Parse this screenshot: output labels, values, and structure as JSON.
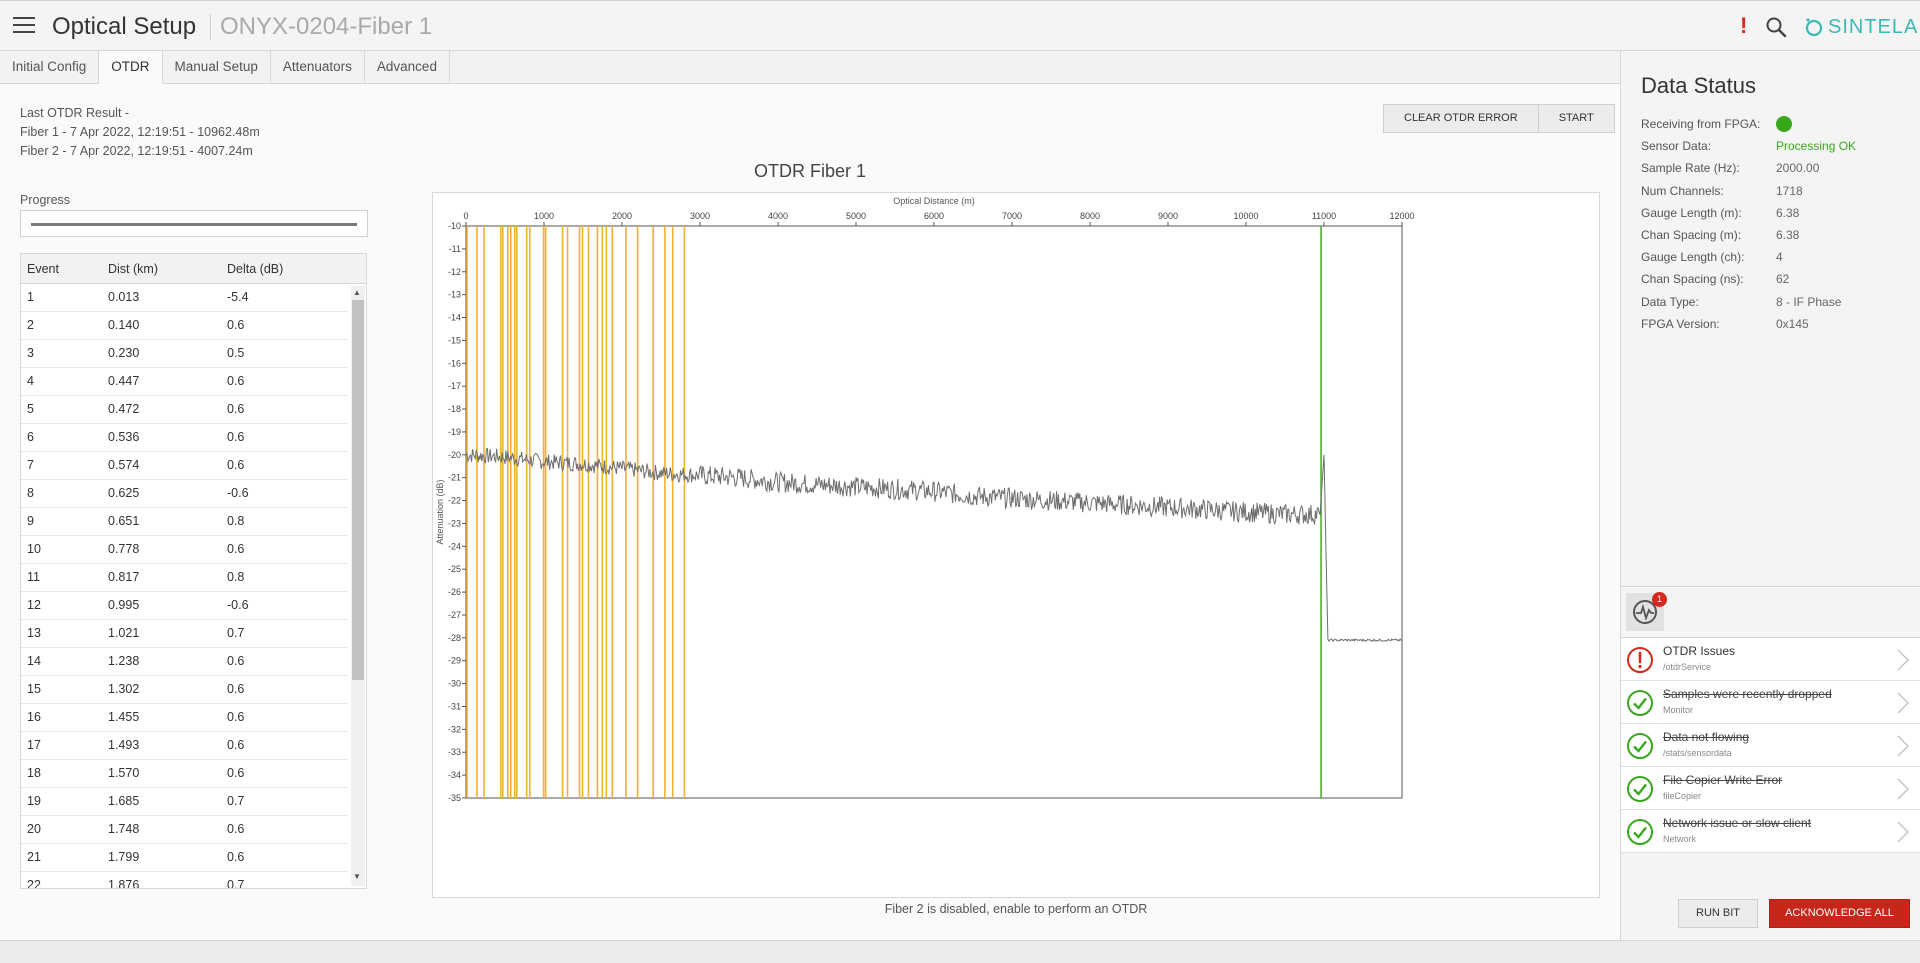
{
  "header": {
    "app_title": "Optical Setup",
    "device_title": "ONYX-0204-Fiber 1",
    "alert_indicator": "!",
    "brand": "SINTELA",
    "icons": [
      "menu-icon",
      "search-icon",
      "sintela-logo-icon"
    ],
    "colors": {
      "brand": "#3ab9b5",
      "alert": "#e0261b"
    }
  },
  "tabs": [
    {
      "label": "Initial Config",
      "active": false
    },
    {
      "label": "OTDR",
      "active": true
    },
    {
      "label": "Manual Setup",
      "active": false
    },
    {
      "label": "Attenuators",
      "active": false
    },
    {
      "label": "Advanced",
      "active": false
    }
  ],
  "otdr": {
    "last_result_label": "Last OTDR Result -",
    "fiber1_result": "Fiber 1 - 7 Apr 2022, 12:19:51 - 10962.48m",
    "fiber2_result": "Fiber 2 - 7 Apr 2022, 12:19:51 - 4007.24m",
    "clear_error_label": "CLEAR OTDR ERROR",
    "start_label": "START",
    "progress_label": "Progress",
    "progress_fraction": 1.0,
    "fiber2_message": "Fiber 2 is disabled, enable to perform an OTDR"
  },
  "events_table": {
    "headers": [
      "Event",
      "Dist (km)",
      "Delta (dB)"
    ],
    "rows": [
      [
        "1",
        "0.013",
        "-5.4"
      ],
      [
        "2",
        "0.140",
        "0.6"
      ],
      [
        "3",
        "0.230",
        "0.5"
      ],
      [
        "4",
        "0.447",
        "0.6"
      ],
      [
        "5",
        "0.472",
        "0.6"
      ],
      [
        "6",
        "0.536",
        "0.6"
      ],
      [
        "7",
        "0.574",
        "0.6"
      ],
      [
        "8",
        "0.625",
        "-0.6"
      ],
      [
        "9",
        "0.651",
        "0.8"
      ],
      [
        "10",
        "0.778",
        "0.6"
      ],
      [
        "11",
        "0.817",
        "0.8"
      ],
      [
        "12",
        "0.995",
        "-0.6"
      ],
      [
        "13",
        "1.021",
        "0.7"
      ],
      [
        "14",
        "1.238",
        "0.6"
      ],
      [
        "15",
        "1.302",
        "0.6"
      ],
      [
        "16",
        "1.455",
        "0.6"
      ],
      [
        "17",
        "1.493",
        "0.6"
      ],
      [
        "18",
        "1.570",
        "0.6"
      ],
      [
        "19",
        "1.685",
        "0.7"
      ],
      [
        "20",
        "1.748",
        "0.6"
      ],
      [
        "21",
        "1.799",
        "0.6"
      ],
      [
        "22",
        "1.876",
        "0.7"
      ]
    ]
  },
  "chart_data": {
    "type": "line",
    "title": "OTDR Fiber 1",
    "xlabel": "Optical Distance (m)",
    "ylabel": "Attenuation (dB)",
    "xlim": [
      0,
      12000
    ],
    "ylim": [
      -35,
      -10
    ],
    "x_ticks": [
      "0",
      "1000",
      "2000",
      "3000",
      "4000",
      "5000",
      "6000",
      "7000",
      "8000",
      "9000",
      "10000",
      "11000",
      "12000"
    ],
    "y_ticks": [
      "-10",
      "-11",
      "-12",
      "-13",
      "-14",
      "-15",
      "-16",
      "-17",
      "-18",
      "-19",
      "-20",
      "-21",
      "-22",
      "-23",
      "-24",
      "-25",
      "-26",
      "-27",
      "-28",
      "-29",
      "-30",
      "-31",
      "-32",
      "-33",
      "-34",
      "-35"
    ],
    "series": [
      {
        "color": "#6e6e6e",
        "x": [
          0,
          500,
          1000,
          1500,
          2000,
          2500,
          3000,
          3500,
          4000,
          4500,
          5000,
          5500,
          6000,
          6500,
          7000,
          7500,
          8000,
          8500,
          9000,
          9500,
          10000,
          10500,
          10950,
          11000,
          11050,
          11500,
          12000
        ],
        "y": [
          -20.0,
          -20.1,
          -20.3,
          -20.4,
          -20.6,
          -20.8,
          -20.9,
          -21.0,
          -21.2,
          -21.3,
          -21.4,
          -21.5,
          -21.6,
          -21.8,
          -21.9,
          -22.0,
          -22.1,
          -22.2,
          -22.3,
          -22.4,
          -22.5,
          -22.6,
          -22.6,
          -20.0,
          -28.1,
          -28.1,
          -28.1
        ]
      }
    ],
    "event_markers_m": [
      13,
      140,
      230,
      447,
      472,
      536,
      574,
      625,
      651,
      778,
      817,
      995,
      1021,
      1238,
      1302,
      1455,
      1493,
      1570,
      1685,
      1748,
      1799,
      1876,
      2050,
      2200,
      2400,
      2550,
      2650,
      2800
    ],
    "event_marker_color": "#f2b12e",
    "end_marker_m": 10962.48,
    "end_marker_color": "#4caf2a",
    "grid": false
  },
  "data_status": {
    "title": "Data Status",
    "rows": [
      {
        "label": "Receiving from FPGA:",
        "value": "",
        "indicator": "green-dot"
      },
      {
        "label": "Sensor Data:",
        "value": "Processing OK",
        "status": "ok"
      },
      {
        "label": "Sample Rate (Hz):",
        "value": "2000.00"
      },
      {
        "label": "Num Channels:",
        "value": "1718"
      },
      {
        "label": "Gauge Length (m):",
        "value": "6.38"
      },
      {
        "label": "Chan Spacing (m):",
        "value": "6.38"
      },
      {
        "label": "Gauge Length (ch):",
        "value": "4"
      },
      {
        "label": "Chan Spacing (ns):",
        "value": "62"
      },
      {
        "label": "Data Type:",
        "value": "8 - IF Phase"
      },
      {
        "label": "FPGA Version:",
        "value": "0x145"
      }
    ],
    "ok_color": "#3aa61f"
  },
  "issues": {
    "badge_count": "1",
    "items": [
      {
        "title": "OTDR Issues",
        "subtitle": "/otdrService",
        "state": "error"
      },
      {
        "title": "Samples were recently dropped",
        "subtitle": "Monitor",
        "state": "resolved"
      },
      {
        "title": "Data not flowing",
        "subtitle": "/stats/sensordata",
        "state": "resolved"
      },
      {
        "title": "File Copier Write Error",
        "subtitle": "fileCopier",
        "state": "resolved"
      },
      {
        "title": "Network issue or slow client",
        "subtitle": "Network",
        "state": "resolved"
      }
    ],
    "run_bit_label": "RUN BIT",
    "acknowledge_all_label": "ACKNOWLEDGE ALL",
    "colors": {
      "error": "#d7281e",
      "resolved": "#3aa61f",
      "acknowledge": "#c7261b"
    }
  }
}
